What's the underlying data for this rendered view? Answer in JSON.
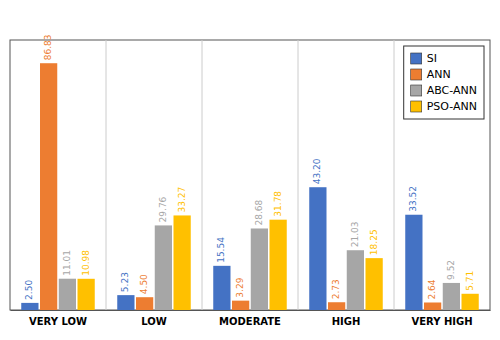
{
  "chart_data": {
    "type": "bar",
    "categories": [
      "VERY LOW",
      "LOW",
      "MODERATE",
      "HIGH",
      "VERY HIGH"
    ],
    "series": [
      {
        "name": "SI",
        "color": "#4472C4",
        "values": [
          2.5,
          5.23,
          15.54,
          43.2,
          33.52
        ],
        "value_labels": [
          "2.50",
          "5.23",
          "15.54",
          "43.20",
          "33.52"
        ]
      },
      {
        "name": "ANN",
        "color": "#ED7D31",
        "values": [
          86.83,
          4.5,
          3.29,
          2.73,
          2.64
        ],
        "value_labels": [
          "86.83",
          "4.50",
          "3.29",
          "2.73",
          "2.64"
        ]
      },
      {
        "name": "ABC-ANN",
        "color": "#A6A6A6",
        "values": [
          11.01,
          29.76,
          28.68,
          21.03,
          9.52
        ],
        "value_labels": [
          "11.01",
          "29.76",
          "28.68",
          "21.03",
          "9.52"
        ]
      },
      {
        "name": "PSO-ANN",
        "color": "#FFC000",
        "values": [
          10.98,
          33.27,
          31.78,
          18.25,
          5.71
        ],
        "value_labels": [
          "10.98",
          "33.27",
          "31.78",
          "18.25",
          "5.71"
        ]
      }
    ],
    "ylim": [
      0,
      95
    ],
    "data_labels": true,
    "legend": "upper right",
    "grid": false,
    "tick_labels": "x"
  }
}
